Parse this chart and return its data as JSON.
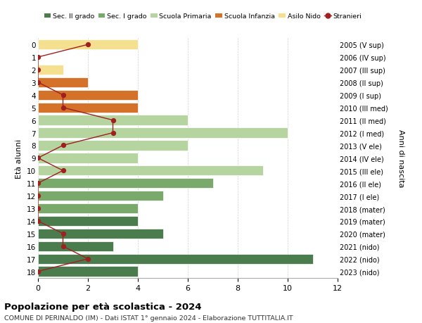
{
  "ages": [
    18,
    17,
    16,
    15,
    14,
    13,
    12,
    11,
    10,
    9,
    8,
    7,
    6,
    5,
    4,
    3,
    2,
    1,
    0
  ],
  "years": [
    "2005 (V sup)",
    "2006 (IV sup)",
    "2007 (III sup)",
    "2008 (II sup)",
    "2009 (I sup)",
    "2010 (III med)",
    "2011 (II med)",
    "2012 (I med)",
    "2013 (V ele)",
    "2014 (IV ele)",
    "2015 (III ele)",
    "2016 (II ele)",
    "2017 (I ele)",
    "2018 (mater)",
    "2019 (mater)",
    "2020 (mater)",
    "2021 (nido)",
    "2022 (nido)",
    "2023 (nido)"
  ],
  "values": [
    4,
    11,
    3,
    5,
    4,
    4,
    5,
    7,
    9,
    4,
    6,
    10,
    6,
    4,
    4,
    2,
    1,
    0,
    4
  ],
  "stranieri": [
    0,
    2,
    1,
    1,
    0,
    0,
    0,
    0,
    1,
    0,
    1,
    3,
    3,
    1,
    1,
    0,
    0,
    0,
    2
  ],
  "bar_colors": [
    "#4a7c4e",
    "#4a7c4e",
    "#4a7c4e",
    "#4a7c4e",
    "#4a7c4e",
    "#7aaa6b",
    "#7aaa6b",
    "#7aaa6b",
    "#b5d4a0",
    "#b5d4a0",
    "#b5d4a0",
    "#b5d4a0",
    "#b5d4a0",
    "#d4722a",
    "#d4722a",
    "#d4722a",
    "#f5e090",
    "#f5e090",
    "#f5e090"
  ],
  "legend_labels": [
    "Sec. II grado",
    "Sec. I grado",
    "Scuola Primaria",
    "Scuola Infanzia",
    "Asilo Nido",
    "Stranieri"
  ],
  "legend_colors": [
    "#4a7c4e",
    "#7aaa6b",
    "#b5d4a0",
    "#d4722a",
    "#f5e090",
    "#a02020"
  ],
  "stranieri_line_color": "#a02020",
  "title": "Popolazione per età scolastica - 2024",
  "subtitle": "COMUNE DI PERINALDO (IM) - Dati ISTAT 1° gennaio 2024 - Elaborazione TUTTITALIA.IT",
  "ylabel": "Età alunni",
  "right_ylabel": "Anni di nascita",
  "xlim": [
    0,
    12
  ],
  "xticks": [
    0,
    2,
    4,
    6,
    8,
    10,
    12
  ],
  "background_color": "#ffffff",
  "grid_color": "#cccccc",
  "bar_height": 0.8
}
